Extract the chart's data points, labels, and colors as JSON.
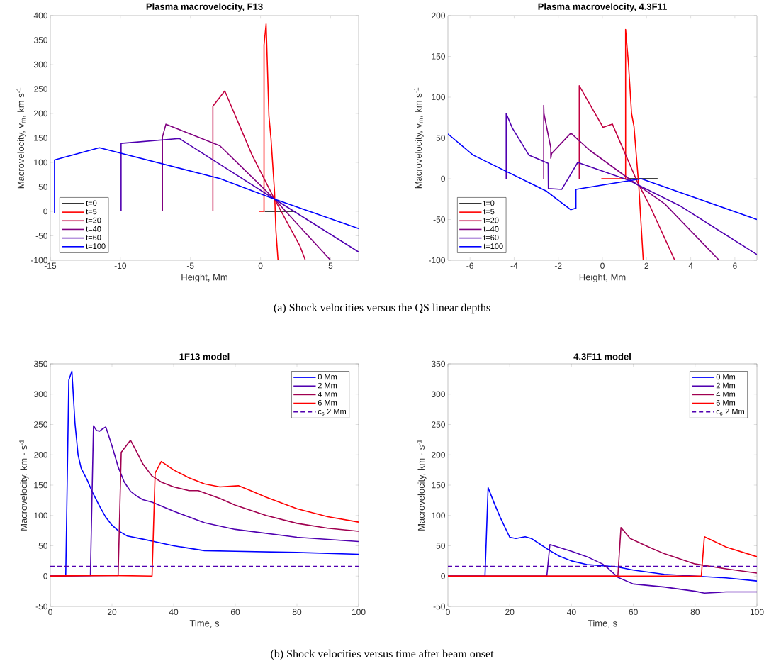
{
  "chart_data": [
    {
      "type": "line",
      "title": "Plasma macrovelocity, F13",
      "xlabel": "Height, Mm",
      "ylabel": "Macrovelocity, v$_{m}$, km s$^{-1}$",
      "xlim": [
        -15,
        7
      ],
      "xticks": [
        -15,
        -10,
        -5,
        0,
        5
      ],
      "ylim": [
        -100,
        400
      ],
      "yticks": [
        -100,
        -50,
        0,
        50,
        100,
        150,
        200,
        250,
        300,
        350,
        400
      ],
      "legend": "bottom left",
      "annotations": [
        "(a) Shock velocities versus the QS linear depths"
      ],
      "series": [
        {
          "name": "t=0",
          "color": "#000000",
          "x": [
            0.3,
            2.5
          ],
          "values": [
            0,
            0
          ]
        },
        {
          "name": "t=5",
          "color": "#ff0000",
          "x": [
            -0.1,
            0.25,
            0.25,
            0.4,
            0.6,
            0.75,
            1.0,
            1.1,
            1.25
          ],
          "values": [
            0,
            0,
            340,
            383,
            195,
            148,
            40,
            -40,
            -100
          ]
        },
        {
          "name": "t=20",
          "color": "#c00040",
          "x": [
            -3.4,
            -3.4,
            -2.55,
            -0.6,
            1.0,
            2.8,
            3.2
          ],
          "values": [
            0,
            215,
            246,
            115,
            25,
            -70,
            -100
          ]
        },
        {
          "name": "t=40",
          "color": "#800080",
          "x": [
            -7.0,
            -7.0,
            -6.75,
            -2.9,
            1.0,
            5.0
          ],
          "values": [
            0,
            152,
            178,
            134,
            25,
            -100
          ]
        },
        {
          "name": "t=60",
          "color": "#5000b0",
          "x": [
            -9.95,
            -9.95,
            -5.8,
            1.0,
            7.0
          ],
          "values": [
            0,
            139,
            149,
            25,
            -83
          ]
        },
        {
          "name": "t=100",
          "color": "#0000ff",
          "x": [
            -14.7,
            -14.7,
            -11.5,
            -2.9,
            1.0,
            7.0
          ],
          "values": [
            -3,
            105,
            130,
            67,
            25,
            -35
          ]
        }
      ]
    },
    {
      "type": "line",
      "title": "Plasma macrovelocity, 4.3F11",
      "xlabel": "Height, Mm",
      "ylabel": "Macrovelocity, v$_{m}$, km s$^{-1}$",
      "xlim": [
        -7,
        7
      ],
      "xticks": [
        -6,
        -4,
        -2,
        0,
        2,
        4,
        6
      ],
      "ylim": [
        -100,
        200
      ],
      "yticks": [
        -100,
        -50,
        0,
        50,
        100,
        150,
        200
      ],
      "legend": "bottom left",
      "series": [
        {
          "name": "t=0",
          "color": "#000000",
          "x": [
            1.2,
            2.5
          ],
          "values": [
            0,
            0
          ]
        },
        {
          "name": "t=5",
          "color": "#ff0000",
          "x": [
            -0.05,
            1.05,
            1.05,
            1.18,
            1.32,
            1.43,
            1.65,
            1.85
          ],
          "values": [
            0,
            0,
            183,
            141,
            80,
            64,
            -10,
            -100
          ]
        },
        {
          "name": "t=20",
          "color": "#c00040",
          "x": [
            -1.05,
            -1.05,
            0.03,
            0.45,
            1.6,
            2.18,
            3.28
          ],
          "values": [
            0,
            114,
            63,
            67,
            -5,
            -35,
            -100
          ]
        },
        {
          "name": "t=40",
          "color": "#800080",
          "x": [
            -2.66,
            -2.66,
            -2.65,
            -2.34,
            -2.34,
            -2.3,
            -1.43,
            -0.58,
            1.2,
            2.83,
            5.29
          ],
          "values": [
            0,
            90,
            80,
            38,
            25,
            31,
            56,
            35,
            0,
            -31,
            -100
          ]
        },
        {
          "name": "t=60",
          "color": "#5000b0",
          "x": [
            -4.36,
            -4.36,
            -4.08,
            -3.33,
            -2.46,
            -2.45,
            -1.84,
            -1.12,
            1.2,
            3.5,
            7.0
          ],
          "values": [
            0,
            80,
            62,
            29,
            19,
            -12,
            -13,
            20,
            -2,
            -33,
            -93
          ]
        },
        {
          "name": "t=100",
          "color": "#0000ff",
          "x": [
            -7.0,
            -5.86,
            -2.55,
            -1.44,
            -1.2,
            -1.2,
            1.76,
            7.0
          ],
          "values": [
            55,
            29,
            -15,
            -38,
            -36,
            -13,
            0,
            -50
          ]
        }
      ]
    },
    {
      "type": "line",
      "title": "1F13 model",
      "xlabel": "Time, s",
      "ylabel": "Macrovelocity, km · s$^{-1}$",
      "xlim": [
        0,
        100
      ],
      "xticks": [
        0,
        20,
        40,
        60,
        80,
        100
      ],
      "ylim": [
        -50,
        350
      ],
      "yticks": [
        -50,
        0,
        50,
        100,
        150,
        200,
        250,
        300,
        350
      ],
      "legend": "top right",
      "annotations": [
        "(b) Shock velocities versus time after beam onset"
      ],
      "series": [
        {
          "name": "0 Mm",
          "color": "#0000ff",
          "x": [
            0,
            5,
            6,
            7,
            8,
            9,
            10,
            12,
            13.5,
            16,
            18,
            20,
            22,
            25,
            30,
            40,
            50,
            60,
            80,
            100
          ],
          "values": [
            0,
            0,
            323,
            338,
            252,
            200,
            178,
            158,
            140,
            115,
            97,
            84,
            75,
            66,
            61,
            50,
            42,
            41,
            39,
            36
          ]
        },
        {
          "name": "2 Mm",
          "color": "#5000b0",
          "x": [
            0,
            13,
            14,
            15,
            16,
            17,
            18,
            20,
            22,
            24,
            26,
            28,
            30,
            33,
            40,
            50,
            60,
            80,
            100
          ],
          "values": [
            0,
            1,
            248,
            240,
            239,
            243,
            246,
            215,
            180,
            155,
            140,
            132,
            126,
            122,
            107,
            88,
            77,
            64,
            57
          ]
        },
        {
          "name": "4 Mm",
          "color": "#a00050",
          "x": [
            0,
            22,
            23,
            26,
            28,
            30,
            33,
            36,
            40,
            45,
            48,
            55,
            60,
            70,
            80,
            90,
            100
          ],
          "values": [
            0,
            1,
            204,
            224,
            205,
            185,
            165,
            155,
            147,
            141,
            141,
            128,
            117,
            100,
            87,
            79,
            74
          ]
        },
        {
          "name": "6 Mm",
          "color": "#ff0000",
          "x": [
            0,
            10,
            20,
            33,
            34,
            36,
            40,
            45,
            50,
            55,
            61,
            65,
            70,
            80,
            90,
            100
          ],
          "values": [
            0,
            1,
            1,
            0,
            170,
            189,
            175,
            162,
            152,
            147,
            149,
            141,
            130,
            111,
            98,
            89
          ]
        },
        {
          "name": "c$_{s}$ 2 Mm",
          "color": "#5000b0",
          "line_style": "dashed",
          "x": [
            0,
            100
          ],
          "values": [
            16,
            16
          ]
        }
      ]
    },
    {
      "type": "line",
      "title": "4.3F11 model",
      "xlabel": "Time, s",
      "ylabel": "Macrovelocity, km · s$^{-1}$",
      "xlim": [
        0,
        100
      ],
      "xticks": [
        0,
        20,
        40,
        60,
        80,
        100
      ],
      "ylim": [
        -50,
        350
      ],
      "yticks": [
        -50,
        0,
        50,
        100,
        150,
        200,
        250,
        300,
        350
      ],
      "legend": "top right",
      "series": [
        {
          "name": "0 Mm",
          "color": "#0000ff",
          "x": [
            0,
            12,
            13,
            15,
            17,
            20,
            22,
            25,
            27,
            30,
            33,
            36,
            40,
            45,
            50,
            55,
            60,
            70,
            80,
            90,
            100
          ],
          "values": [
            0,
            0,
            146,
            120,
            96,
            64,
            62,
            65,
            62,
            52,
            42,
            33,
            25,
            19,
            17,
            15,
            10,
            3,
            0,
            -3,
            -8
          ]
        },
        {
          "name": "2 Mm",
          "color": "#5000b0",
          "x": [
            0,
            32,
            33,
            40,
            45,
            50,
            52,
            55,
            60,
            70,
            80,
            83,
            90,
            100
          ],
          "values": [
            0,
            0,
            52,
            41,
            32,
            20,
            12,
            -2,
            -13,
            -18,
            -25,
            -28,
            -26,
            -26
          ]
        },
        {
          "name": "4 Mm",
          "color": "#a00050",
          "x": [
            0,
            55,
            56,
            59,
            65,
            70,
            80,
            90,
            100
          ],
          "values": [
            0,
            0,
            80,
            62,
            48,
            37,
            20,
            12,
            5
          ]
        },
        {
          "name": "6 Mm",
          "color": "#ff0000",
          "x": [
            0,
            82,
            83,
            90,
            100
          ],
          "values": [
            0,
            0,
            65,
            48,
            32
          ]
        },
        {
          "name": "c$_{s}$ 2 Mm",
          "color": "#5000b0",
          "line_style": "dashed",
          "x": [
            0,
            100
          ],
          "values": [
            16,
            16
          ]
        }
      ]
    }
  ]
}
